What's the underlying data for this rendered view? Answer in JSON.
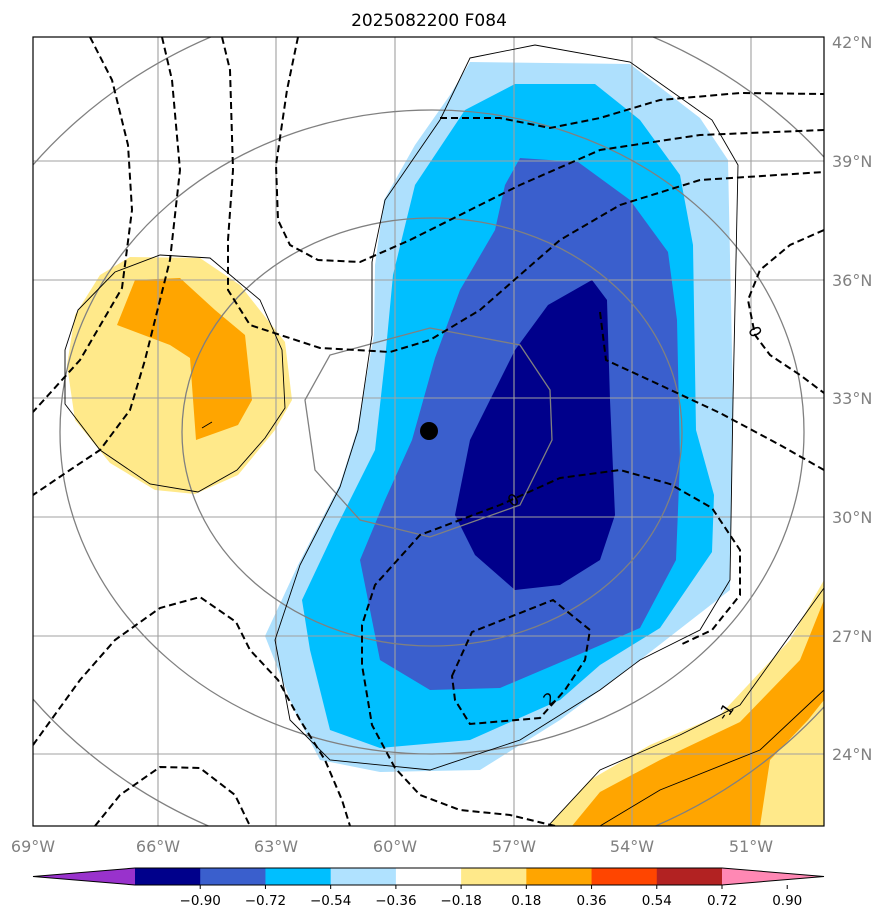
{
  "title": "2025082200 F084",
  "lon_labels": [
    "69°W",
    "66°W",
    "63°W",
    "60°W",
    "57°W",
    "54°W",
    "51°W"
  ],
  "lat_labels": [
    "42°N",
    "39°N",
    "36°N",
    "33°N",
    "30°N",
    "27°N",
    "24°N"
  ],
  "colorbar": {
    "ticks": [
      "−0.90",
      "−0.72",
      "−0.54",
      "−0.36",
      "−0.18",
      "0.18",
      "0.36",
      "0.54",
      "0.72",
      "0.90"
    ],
    "colors": [
      "#9932cc",
      "#00008b",
      "#3a5fcd",
      "#00bfff",
      "#b0e2ff",
      "#ffffff",
      "#ffe98a",
      "#ffa500",
      "#ff4500",
      "#b22222",
      "#ff88b4"
    ]
  },
  "contour_labels": [
    "0",
    "0",
    "2",
    "-1"
  ],
  "fill_colors": {
    "light_blue": "#aee0fd",
    "blue": "#00bfff",
    "medium_blue": "#3a5fcd",
    "dark_blue": "#00008b",
    "light_yellow": "#ffe98a",
    "orange": "#ffa500"
  }
}
